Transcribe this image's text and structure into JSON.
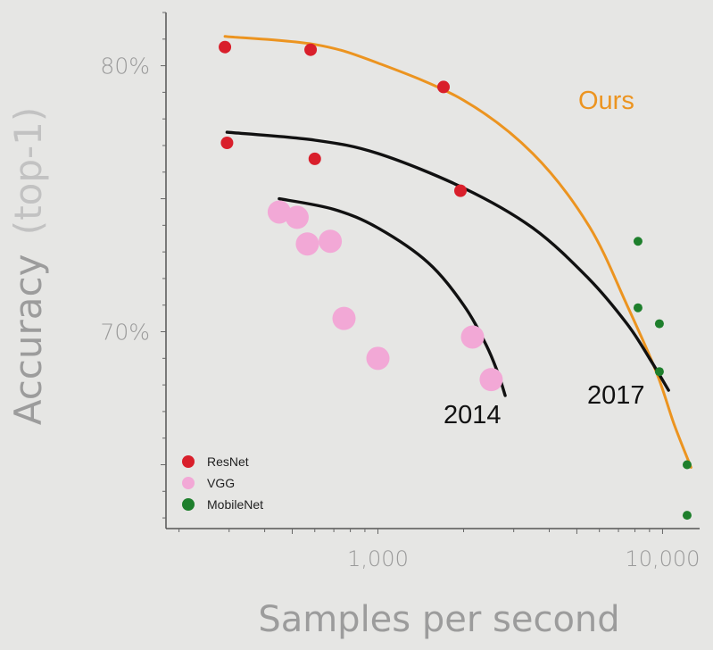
{
  "chart_data": {
    "type": "scatter",
    "title": "",
    "xlabel": "Samples per second",
    "ylabel": {
      "main": "Accuracy",
      "suffix": "(top-1)"
    },
    "x_scale": "log",
    "xlim": [
      180,
      13500
    ],
    "ylim": [
      62.6,
      82.0
    ],
    "x_ticks": [
      {
        "value": 1000,
        "label": "1,000"
      },
      {
        "value": 10000,
        "label": "10,000"
      }
    ],
    "y_ticks": [
      {
        "value": 70,
        "label": "70%"
      },
      {
        "value": 80,
        "label": "80%"
      }
    ],
    "legend": {
      "placement": "bottom-left",
      "entries": [
        {
          "name": "ResNet",
          "color": "#d91f2b"
        },
        {
          "name": "VGG",
          "color": "#f2a8d6"
        },
        {
          "name": "MobileNet",
          "color": "#1e7f2c"
        }
      ]
    },
    "series": [
      {
        "name": "ResNet",
        "color": "#d91f2b",
        "points": [
          {
            "x": 290,
            "y": 80.7
          },
          {
            "x": 580,
            "y": 80.6
          },
          {
            "x": 1700,
            "y": 79.2
          },
          {
            "x": 295,
            "y": 77.1
          },
          {
            "x": 600,
            "y": 76.5
          },
          {
            "x": 1950,
            "y": 75.3
          }
        ]
      },
      {
        "name": "VGG",
        "color": "#f2a8d6",
        "points": [
          {
            "x": 450,
            "y": 74.5
          },
          {
            "x": 520,
            "y": 74.3
          },
          {
            "x": 565,
            "y": 73.3
          },
          {
            "x": 680,
            "y": 73.4
          },
          {
            "x": 760,
            "y": 70.5
          },
          {
            "x": 1000,
            "y": 69.0
          },
          {
            "x": 2150,
            "y": 69.8
          },
          {
            "x": 2500,
            "y": 68.2
          }
        ]
      },
      {
        "name": "MobileNet",
        "color": "#1e7f2c",
        "points": [
          {
            "x": 8200,
            "y": 73.4
          },
          {
            "x": 8200,
            "y": 70.9
          },
          {
            "x": 9750,
            "y": 70.3
          },
          {
            "x": 9750,
            "y": 68.5
          },
          {
            "x": 12200,
            "y": 65.0
          },
          {
            "x": 12200,
            "y": 63.1
          }
        ]
      }
    ],
    "frontier_curves": [
      {
        "label": "Ours",
        "color": "#ec9420",
        "points": [
          [
            290,
            81.1
          ],
          [
            600,
            80.8
          ],
          [
            1000,
            80.1
          ],
          [
            2000,
            78.7
          ],
          [
            3500,
            76.7
          ],
          [
            5500,
            74.0
          ],
          [
            7500,
            71.0
          ],
          [
            9500,
            68.5
          ],
          [
            11000,
            66.5
          ],
          [
            12600,
            64.9
          ]
        ]
      },
      {
        "label": "2017",
        "color": "#111111",
        "points": [
          [
            295,
            77.5
          ],
          [
            600,
            77.2
          ],
          [
            1000,
            76.7
          ],
          [
            2000,
            75.4
          ],
          [
            3500,
            73.9
          ],
          [
            5500,
            72.0
          ],
          [
            7500,
            70.3
          ],
          [
            9000,
            69.0
          ],
          [
            10500,
            67.8
          ]
        ]
      },
      {
        "label": "2014",
        "color": "#111111",
        "points": [
          [
            450,
            75.0
          ],
          [
            700,
            74.6
          ],
          [
            1000,
            73.9
          ],
          [
            1500,
            72.6
          ],
          [
            2000,
            71.0
          ],
          [
            2400,
            69.5
          ],
          [
            2650,
            68.4
          ],
          [
            2800,
            67.6
          ]
        ]
      }
    ]
  }
}
